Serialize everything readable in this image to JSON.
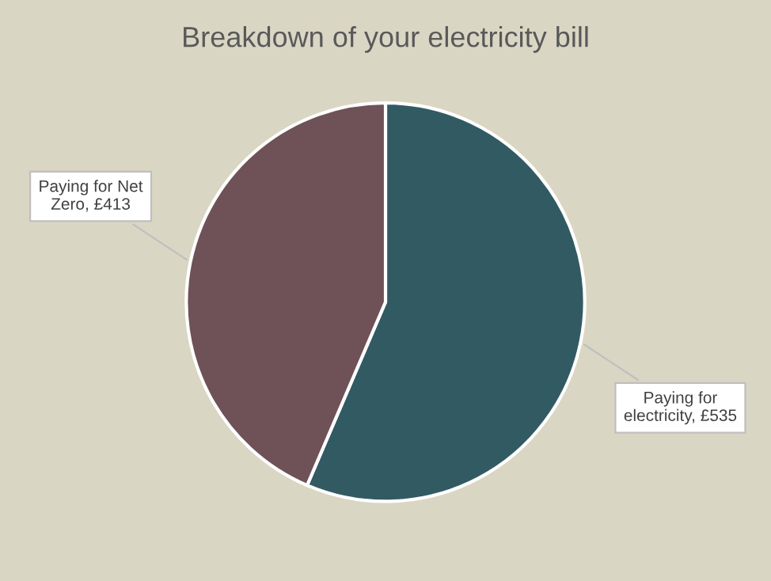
{
  "chart_data": {
    "type": "pie",
    "title": "Breakdown of your electricity bill",
    "categories": [
      "Paying for electricity, £535",
      "Paying for Net Zero, £413"
    ],
    "values": [
      535,
      413
    ],
    "colors": [
      "#325a62",
      "#6e5258"
    ],
    "legend": false
  }
}
